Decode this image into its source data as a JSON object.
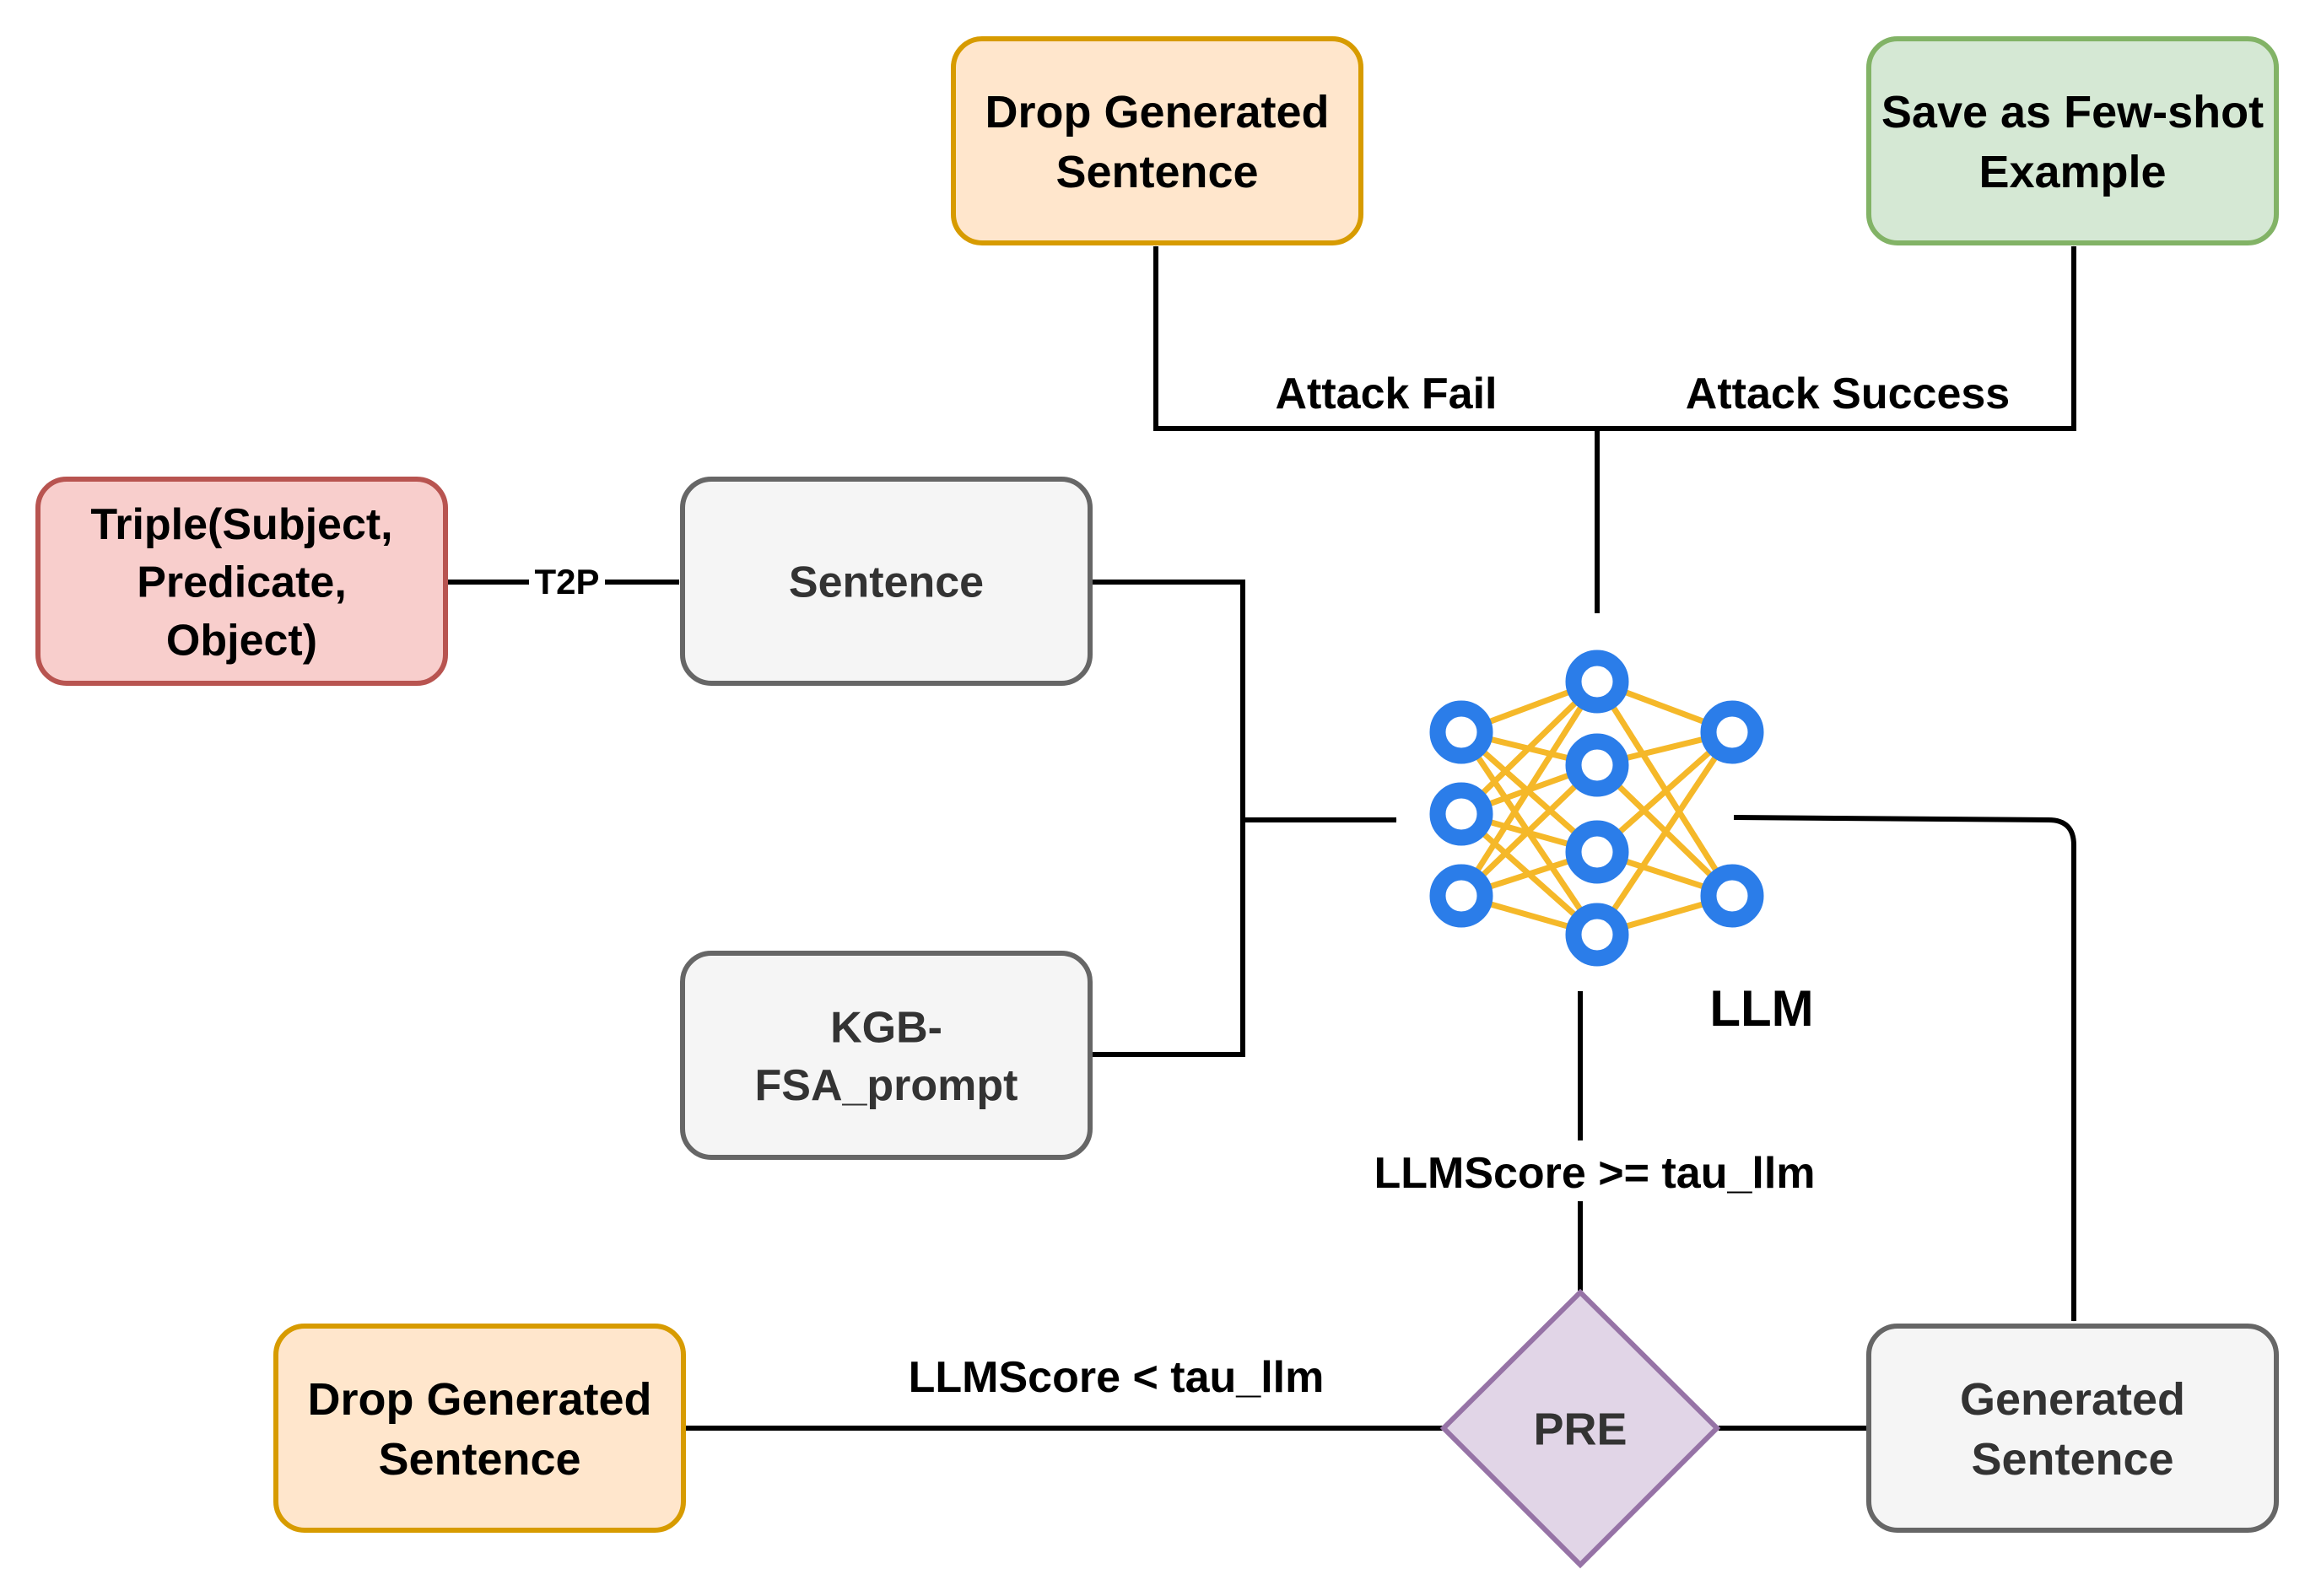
{
  "nodes": {
    "triple": {
      "lines": [
        "Triple(Subject,",
        "Predicate,",
        "Object)"
      ],
      "fill": "#f8cecc",
      "stroke": "#b85450"
    },
    "sentence": {
      "lines": [
        "Sentence"
      ],
      "fill": "#f5f5f5",
      "stroke": "#666666"
    },
    "prompt": {
      "lines": [
        "KGB-",
        "FSA_prompt"
      ],
      "fill": "#f5f5f5",
      "stroke": "#666666"
    },
    "drop_top": {
      "lines": [
        "Drop Generated",
        "Sentence"
      ],
      "fill": "#ffe6cc",
      "stroke": "#d79b00"
    },
    "save": {
      "lines": [
        "Save as Few-shot",
        "Example"
      ],
      "fill": "#d5e8d4",
      "stroke": "#82b366"
    },
    "generated": {
      "lines": [
        "Generated",
        "Sentence"
      ],
      "fill": "#f5f5f5",
      "stroke": "#666666"
    },
    "pre": {
      "lines": [
        "PRE"
      ],
      "fill": "#e1d5e7",
      "stroke": "#9673a6"
    },
    "drop_bottom": {
      "lines": [
        "Drop Generated",
        "Sentence"
      ],
      "fill": "#ffe6cc",
      "stroke": "#d79b00"
    }
  },
  "llm": {
    "label": "LLM",
    "node_color": "#2b7de9",
    "edge_color": "#f5b829"
  },
  "edge_labels": {
    "t2p": "T2P",
    "attack_fail": "Attack Fail",
    "attack_success": "Attack Success",
    "score_high": "LLMScore >= tau_llm",
    "score_low": "LLMScore < tau_llm"
  }
}
